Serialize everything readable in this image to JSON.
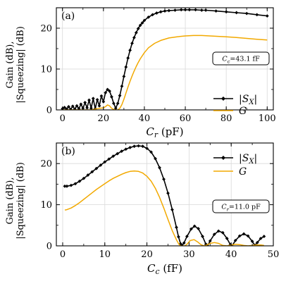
{
  "chart_data": [
    {
      "type": "line",
      "panel_label": "(a)",
      "xlabel_var": "C",
      "xlabel_sub": "r",
      "xlabel_unit": " (pF)",
      "ylabel_line1": "Gain (dB),",
      "ylabel_line2": "|Squeezing| (dB)",
      "xlim": [
        -3,
        103
      ],
      "ylim": [
        0,
        25
      ],
      "xticks": [
        0,
        20,
        40,
        60,
        80,
        100
      ],
      "yticks": [
        0,
        10,
        20
      ],
      "grid": true,
      "legend_position": "right",
      "param_box": {
        "var": "C",
        "sub": "c",
        "text": "=43.1 fF"
      },
      "series": [
        {
          "name": "|S_X|",
          "color": "#000000",
          "marker": "diamond",
          "points": [
            [
              0,
              0.3
            ],
            [
              1,
              0.6
            ],
            [
              2,
              0.2
            ],
            [
              3,
              0.8
            ],
            [
              4,
              0.1
            ],
            [
              5,
              0.9
            ],
            [
              6,
              0.2
            ],
            [
              7,
              1.0
            ],
            [
              8,
              0.3
            ],
            [
              9,
              1.4
            ],
            [
              10,
              0.4
            ],
            [
              11,
              1.8
            ],
            [
              12,
              0.5
            ],
            [
              13,
              2.4
            ],
            [
              14,
              0.4
            ],
            [
              15,
              2.8
            ],
            [
              16,
              0.3
            ],
            [
              17,
              2.5
            ],
            [
              18,
              1.0
            ],
            [
              19,
              3.4
            ],
            [
              20,
              2.0
            ],
            [
              21,
              4.2
            ],
            [
              22,
              5.0
            ],
            [
              23,
              4.6
            ],
            [
              24,
              3.2
            ],
            [
              25,
              1.6
            ],
            [
              26,
              0.4
            ],
            [
              27,
              1.6
            ],
            [
              28,
              3.5
            ],
            [
              29,
              5.8
            ],
            [
              30,
              8.2
            ],
            [
              31,
              10.5
            ],
            [
              32,
              12.7
            ],
            [
              33,
              14.6
            ],
            [
              34,
              16.3
            ],
            [
              35,
              17.7
            ],
            [
              36,
              18.9
            ],
            [
              37,
              19.9
            ],
            [
              38,
              20.7
            ],
            [
              39,
              21.3
            ],
            [
              40,
              21.9
            ],
            [
              42,
              22.7
            ],
            [
              44,
              23.3
            ],
            [
              46,
              23.7
            ],
            [
              48,
              24.0
            ],
            [
              50,
              24.2
            ],
            [
              52,
              24.3
            ],
            [
              55,
              24.4
            ],
            [
              58,
              24.5
            ],
            [
              60,
              24.5
            ],
            [
              62,
              24.5
            ],
            [
              65,
              24.5
            ],
            [
              68,
              24.4
            ],
            [
              70,
              24.4
            ],
            [
              75,
              24.2
            ],
            [
              80,
              24.0
            ],
            [
              85,
              23.8
            ],
            [
              90,
              23.6
            ],
            [
              95,
              23.3
            ],
            [
              100,
              23.0
            ]
          ]
        },
        {
          "name": "G",
          "color": "#f2a900",
          "marker": "none",
          "points": [
            [
              0,
              0.0
            ],
            [
              14,
              0.0
            ],
            [
              16,
              0.2
            ],
            [
              18,
              0.4
            ],
            [
              20,
              0.5
            ],
            [
              21,
              0.8
            ],
            [
              22,
              1.2
            ],
            [
              23,
              1.0
            ],
            [
              24,
              0.4
            ],
            [
              25,
              0.1
            ],
            [
              26,
              0.0
            ],
            [
              27,
              0.0
            ],
            [
              28,
              0.4
            ],
            [
              29,
              1.3
            ],
            [
              30,
              2.6
            ],
            [
              31,
              4.1
            ],
            [
              32,
              5.6
            ],
            [
              33,
              7.0
            ],
            [
              34,
              8.3
            ],
            [
              35,
              9.5
            ],
            [
              36,
              10.6
            ],
            [
              37,
              11.6
            ],
            [
              38,
              12.5
            ],
            [
              40,
              14.0
            ],
            [
              42,
              15.2
            ],
            [
              45,
              16.3
            ],
            [
              48,
              17.0
            ],
            [
              52,
              17.6
            ],
            [
              56,
              17.9
            ],
            [
              60,
              18.1
            ],
            [
              64,
              18.2
            ],
            [
              68,
              18.2
            ],
            [
              72,
              18.1
            ],
            [
              76,
              18.0
            ],
            [
              80,
              17.9
            ],
            [
              85,
              17.7
            ],
            [
              90,
              17.5
            ],
            [
              95,
              17.3
            ],
            [
              100,
              17.1
            ]
          ]
        }
      ]
    },
    {
      "type": "line",
      "panel_label": "(b)",
      "xlabel_var": "C",
      "xlabel_sub": "c",
      "xlabel_unit": " (fF)",
      "ylabel_line1": "Gain (dB),",
      "ylabel_line2": "|Squeezing| (dB)",
      "xlim": [
        -1.5,
        50
      ],
      "ylim": [
        0,
        25
      ],
      "xticks": [
        0,
        10,
        20,
        30,
        40,
        50
      ],
      "yticks": [
        0,
        10,
        20
      ],
      "grid": true,
      "legend_position": "top-right",
      "param_box": {
        "var": "C",
        "sub": "r",
        "text": "=11.0 pF"
      },
      "series": [
        {
          "name": "|S_X|",
          "color": "#000000",
          "marker": "diamond",
          "points": [
            [
              0.5,
              14.5
            ],
            [
              1,
              14.5
            ],
            [
              2,
              14.7
            ],
            [
              3,
              15.1
            ],
            [
              4,
              15.7
            ],
            [
              5,
              16.4
            ],
            [
              6,
              17.2
            ],
            [
              7,
              18.0
            ],
            [
              8,
              18.8
            ],
            [
              9,
              19.6
            ],
            [
              10,
              20.4
            ],
            [
              11,
              21.1
            ],
            [
              12,
              21.8
            ],
            [
              13,
              22.4
            ],
            [
              14,
              23.0
            ],
            [
              15,
              23.5
            ],
            [
              16,
              23.9
            ],
            [
              17,
              24.2
            ],
            [
              18,
              24.3
            ],
            [
              19,
              24.2
            ],
            [
              20,
              23.7
            ],
            [
              21,
              22.8
            ],
            [
              22,
              21.2
            ],
            [
              23,
              19.0
            ],
            [
              24,
              16.2
            ],
            [
              25,
              12.8
            ],
            [
              26,
              8.8
            ],
            [
              27,
              4.5
            ],
            [
              27.5,
              2.2
            ],
            [
              28,
              0.5
            ],
            [
              28.3,
              0.0
            ],
            [
              28.8,
              0.7
            ],
            [
              29.5,
              2.3
            ],
            [
              30.5,
              4.1
            ],
            [
              31.3,
              4.8
            ],
            [
              32.2,
              4.2
            ],
            [
              33.2,
              2.3
            ],
            [
              34.0,
              0.4
            ],
            [
              34.4,
              0.0
            ],
            [
              35,
              1.2
            ],
            [
              36,
              2.8
            ],
            [
              37,
              3.6
            ],
            [
              38,
              3.2
            ],
            [
              39,
              1.8
            ],
            [
              39.8,
              0.3
            ],
            [
              40.2,
              0.0
            ],
            [
              41,
              1.3
            ],
            [
              42,
              2.4
            ],
            [
              43,
              2.9
            ],
            [
              44,
              2.4
            ],
            [
              45,
              1.1
            ],
            [
              45.6,
              0.1
            ],
            [
              46.2,
              0.8
            ],
            [
              47,
              1.8
            ],
            [
              47.8,
              2.3
            ]
          ]
        },
        {
          "name": "G",
          "color": "#f2a900",
          "marker": "none",
          "points": [
            [
              0.5,
              8.7
            ],
            [
              1,
              8.8
            ],
            [
              2,
              9.2
            ],
            [
              3,
              9.8
            ],
            [
              4,
              10.5
            ],
            [
              5,
              11.3
            ],
            [
              6,
              12.1
            ],
            [
              7,
              12.9
            ],
            [
              8,
              13.7
            ],
            [
              9,
              14.4
            ],
            [
              10,
              15.1
            ],
            [
              11,
              15.8
            ],
            [
              12,
              16.4
            ],
            [
              13,
              16.9
            ],
            [
              14,
              17.4
            ],
            [
              15,
              17.8
            ],
            [
              16,
              18.1
            ],
            [
              17,
              18.2
            ],
            [
              18,
              18.1
            ],
            [
              19,
              17.7
            ],
            [
              20,
              16.9
            ],
            [
              21,
              15.7
            ],
            [
              22,
              14.0
            ],
            [
              23,
              11.8
            ],
            [
              24,
              9.2
            ],
            [
              25,
              6.4
            ],
            [
              26,
              3.7
            ],
            [
              27,
              1.5
            ],
            [
              27.6,
              0.4
            ],
            [
              28,
              0.0
            ],
            [
              29,
              0.0
            ],
            [
              29.5,
              0.4
            ],
            [
              30.3,
              1.3
            ],
            [
              31.2,
              1.5
            ],
            [
              32,
              1.0
            ],
            [
              32.8,
              0.3
            ],
            [
              33.5,
              0.0
            ],
            [
              34.2,
              0.2
            ],
            [
              35,
              0.6
            ],
            [
              36,
              0.8
            ],
            [
              37,
              0.6
            ],
            [
              38,
              0.1
            ],
            [
              39,
              0.0
            ],
            [
              40,
              0.2
            ],
            [
              41,
              0.4
            ],
            [
              42,
              0.3
            ],
            [
              43,
              0.1
            ],
            [
              44,
              0.0
            ],
            [
              45,
              0.1
            ],
            [
              46,
              0.2
            ],
            [
              47,
              0.2
            ],
            [
              47.8,
              0.1
            ]
          ]
        }
      ]
    }
  ]
}
